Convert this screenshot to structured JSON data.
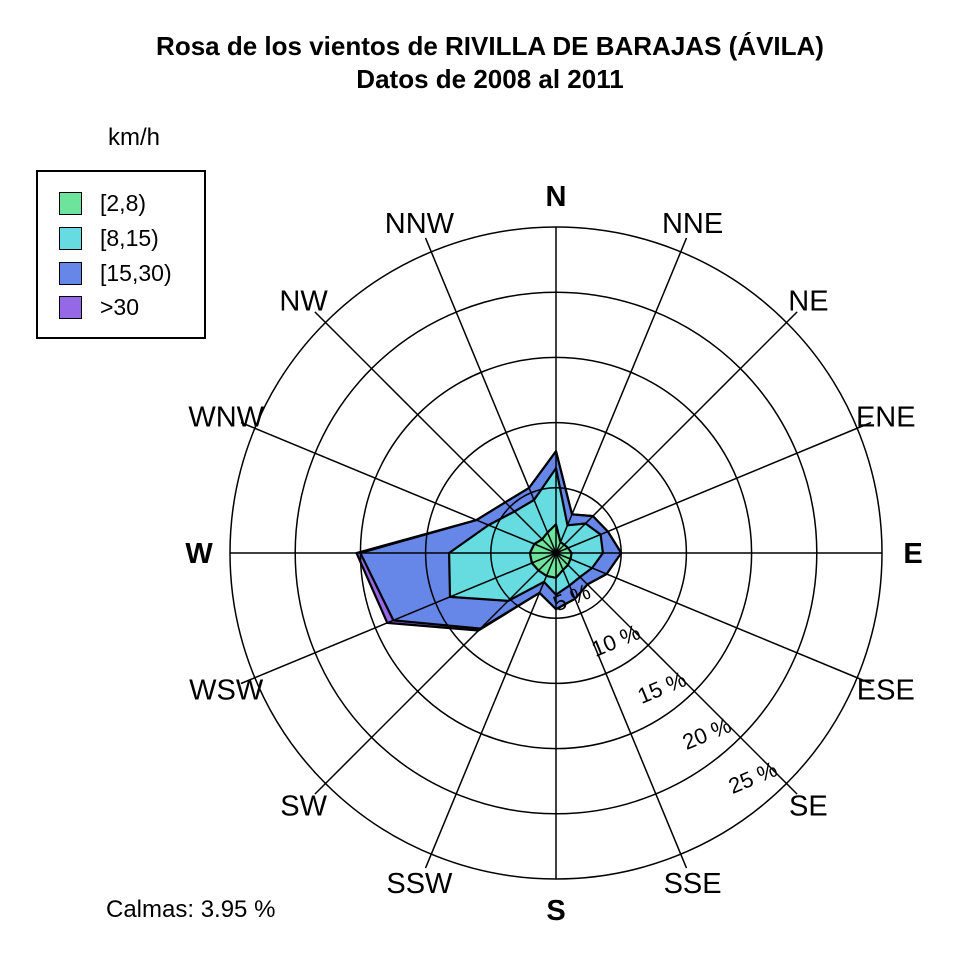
{
  "title": {
    "line1": "Rosa de los vientos de RIVILLA DE BARAJAS (ÁVILA)",
    "line2": "Datos de  2008 al  2011"
  },
  "legend": {
    "title": "km/h",
    "items": [
      {
        "label": "[2,8)",
        "color": "#6EE39B"
      },
      {
        "label": "[8,15)",
        "color": "#66DBE0"
      },
      {
        "label": "[15,30)",
        "color": "#6787E8"
      },
      {
        "label": ">30",
        "color": "#9568E6"
      }
    ]
  },
  "calms_label": "Calmas: 3.95 %",
  "chart_data": {
    "type": "windrose-stacked-polar-area",
    "title": "Rosa de los vientos de RIVILLA DE BARAJAS (ÁVILA)",
    "subtitle": "Datos de  2008 al  2011",
    "units": "percent of observations",
    "directions": [
      "N",
      "NNE",
      "NE",
      "ENE",
      "E",
      "ESE",
      "SE",
      "SSE",
      "S",
      "SSW",
      "SW",
      "WSW",
      "W",
      "WNW",
      "NW",
      "NNW"
    ],
    "cardinal_directions": [
      "N",
      "E",
      "S",
      "W"
    ],
    "rings_percent": [
      5,
      10,
      15,
      20,
      25
    ],
    "ring_labels": [
      "5 %",
      "10 %",
      "15 %",
      "20 %",
      "25 %"
    ],
    "grid": true,
    "legend_position": "top-left",
    "series": [
      {
        "name": "[2,8)",
        "color": "#6EE39B",
        "values": [
          2.2,
          0.9,
          0.9,
          1.0,
          1.2,
          1.2,
          1.3,
          1.4,
          1.9,
          1.9,
          1.9,
          2.0,
          2.0,
          1.8,
          1.5,
          1.7
        ]
      },
      {
        "name": "[8,15)",
        "color": "#66DBE0",
        "values": [
          4.3,
          1.4,
          2.3,
          2.7,
          2.4,
          1.8,
          1.3,
          1.3,
          1.3,
          0.5,
          3.3,
          6.8,
          6.2,
          3.8,
          3.0,
          2.7
        ]
      },
      {
        "name": "[15,30)",
        "color": "#6787E8",
        "values": [
          1.3,
          0.9,
          0.8,
          0.6,
          1.4,
          1.2,
          0.8,
          1.1,
          1.1,
          0.9,
          3.0,
          4.7,
          6.8,
          1.0,
          1.0,
          1.0
        ]
      },
      {
        "name": ">30",
        "color": "#9568E6",
        "values": [
          0,
          0,
          0,
          0,
          0,
          0,
          0,
          0,
          0,
          0,
          0.2,
          0.5,
          0.3,
          0,
          0,
          0
        ]
      }
    ],
    "calms_percent": 3.95
  }
}
